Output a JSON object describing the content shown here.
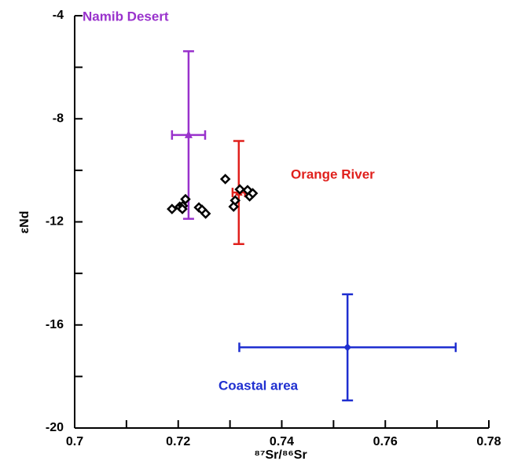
{
  "chart_data": {
    "type": "scatter",
    "x_label": "⁸⁷Sr/⁸⁶Sr",
    "y_label": "εNd",
    "xlim": [
      0.7,
      0.78
    ],
    "xticks": [
      0.7,
      0.72,
      0.74,
      0.76,
      0.78
    ],
    "xminor": [
      0.71,
      0.73,
      0.75,
      0.77
    ],
    "ylim": [
      -20,
      -4
    ],
    "yticks": [
      -4,
      -8,
      -12,
      -16,
      -20
    ],
    "yminor": [
      -6,
      -10,
      -14,
      -18
    ],
    "samples": {
      "color": "#000000",
      "x": [
        0.7188,
        0.7203,
        0.7209,
        0.7208,
        0.7214,
        0.724,
        0.7246,
        0.7253,
        0.7291,
        0.7307,
        0.731,
        0.7319,
        0.7334,
        0.7338,
        0.7344
      ],
      "y": [
        -11.5,
        -11.41,
        -11.38,
        -11.5,
        -11.12,
        -11.44,
        -11.53,
        -11.68,
        -10.34,
        -11.41,
        -11.17,
        -10.74,
        -10.77,
        -11.01,
        -10.89
      ]
    },
    "series": [
      {
        "name": "Namib Desert",
        "color": "#9932cc",
        "marker": "triangle",
        "x": 0.722,
        "y": -8.63,
        "xerr": 0.0032,
        "yerr": 3.25
      },
      {
        "name": "Orange River",
        "color": "#e0201c",
        "marker": "triangle",
        "x": 0.7317,
        "y": -10.86,
        "xerr": 0.0012,
        "yerr": 2.0
      },
      {
        "name": "Coastal area",
        "color": "#1f2fd0",
        "marker": "diamond",
        "x": 0.7527,
        "y": -16.87,
        "xerr": 0.0209,
        "yerr": 2.06
      }
    ]
  }
}
